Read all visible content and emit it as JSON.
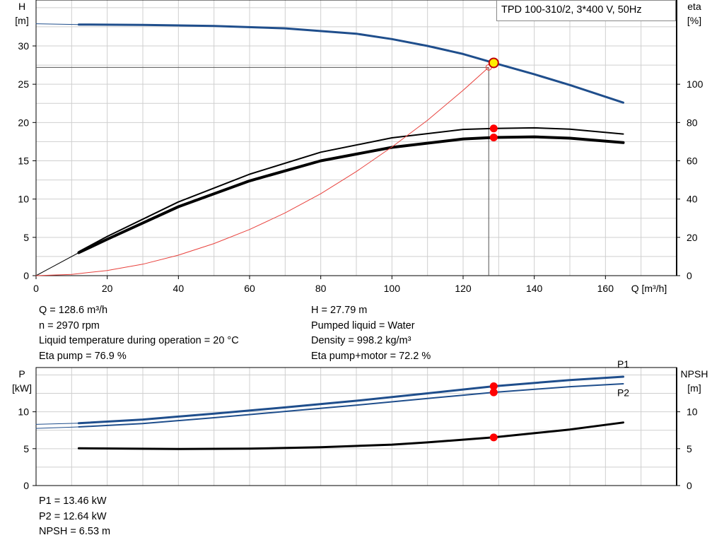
{
  "title_box": "TPD 100-310/2, 3*400 V, 50Hz",
  "colors": {
    "head": "#1f4e8c",
    "eta": "#000000",
    "power": "#1f4e8c",
    "npsh": "#000000",
    "system": "#e8413c",
    "op_point": "#ff0000",
    "op_point_head": "#ffee00"
  },
  "chart_data": [
    {
      "type": "line",
      "name": "upper",
      "xlabel": "Q [m³/h]",
      "ylabel_left": "H [m]",
      "ylabel_right": "eta [%]",
      "xlim": [
        0,
        180
      ],
      "ylim_left": [
        0,
        36
      ],
      "ylim_right": [
        0,
        144
      ],
      "xticks": [
        0,
        20,
        40,
        60,
        80,
        100,
        120,
        140,
        160
      ],
      "yticks_left": [
        0,
        5,
        10,
        15,
        20,
        25,
        30
      ],
      "yticks_right": [
        0,
        20,
        40,
        60,
        80,
        100
      ],
      "grid": true,
      "series": [
        {
          "name": "H",
          "axis": "left",
          "width": 3,
          "color": "#1f4e8c",
          "x": [
            12,
            30,
            50,
            70,
            90,
            100,
            110,
            120,
            128.6,
            140,
            150,
            165
          ],
          "y": [
            32.8,
            32.75,
            32.6,
            32.3,
            31.6,
            30.9,
            30.0,
            28.95,
            27.79,
            26.3,
            24.9,
            22.6
          ]
        },
        {
          "name": "H-ext",
          "axis": "left",
          "width": 1,
          "color": "#1f4e8c",
          "x": [
            0,
            12
          ],
          "y": [
            32.9,
            32.8
          ]
        },
        {
          "name": "Eta pump",
          "axis": "right",
          "width": 2,
          "color": "#000000",
          "x": [
            12,
            20,
            40,
            60,
            80,
            100,
            120,
            128.6,
            140,
            150,
            165
          ],
          "y": [
            12.5,
            20.5,
            38.5,
            53.0,
            64.5,
            72.0,
            76.4,
            76.9,
            77.2,
            76.5,
            74.0
          ]
        },
        {
          "name": "Eta pump+motor",
          "axis": "right",
          "width": 4,
          "color": "#000000",
          "x": [
            12,
            20,
            40,
            60,
            80,
            100,
            120,
            128.6,
            140,
            150,
            165
          ],
          "y": [
            12.0,
            19.0,
            36.0,
            49.5,
            60.0,
            67.0,
            71.4,
            72.2,
            72.5,
            71.8,
            69.5
          ]
        },
        {
          "name": "eta-ext",
          "axis": "right",
          "width": 1,
          "color": "#000000",
          "x": [
            0,
            12
          ],
          "y": [
            0,
            12.0
          ]
        },
        {
          "name": "System curve",
          "axis": "left",
          "width": 1,
          "color": "#e8413c",
          "x": [
            0,
            10,
            20,
            30,
            40,
            50,
            60,
            70,
            80,
            90,
            100,
            110,
            120,
            127.2
          ],
          "y": [
            0,
            0.17,
            0.67,
            1.5,
            2.68,
            4.19,
            6.03,
            8.2,
            10.7,
            13.6,
            16.8,
            20.3,
            24.2,
            27.2
          ]
        }
      ],
      "op_points": [
        {
          "axis": "left",
          "x": 128.6,
          "y": 27.79,
          "style": "head"
        },
        {
          "axis": "right",
          "x": 128.6,
          "y": 76.9,
          "style": "dot"
        },
        {
          "axis": "right",
          "x": 128.6,
          "y": 72.2,
          "style": "dot"
        }
      ],
      "operating_lines": {
        "x": 127.2,
        "y": 27.2
      }
    },
    {
      "type": "line",
      "name": "lower",
      "ylabel_left": "P [kW]",
      "ylabel_right": "NPSH [m]",
      "xlim": [
        0,
        180
      ],
      "ylim_left": [
        0,
        16
      ],
      "ylim_right": [
        0,
        16
      ],
      "yticks_left": [
        0,
        5,
        10
      ],
      "yticks_right": [
        0,
        5,
        10
      ],
      "grid": true,
      "series": [
        {
          "name": "P1",
          "axis": "left",
          "width": 3,
          "color": "#1f4e8c",
          "x": [
            12,
            30,
            50,
            70,
            90,
            110,
            128.6,
            150,
            165
          ],
          "y": [
            8.45,
            8.95,
            9.75,
            10.6,
            11.5,
            12.5,
            13.46,
            14.3,
            14.75
          ]
        },
        {
          "name": "P2",
          "axis": "left",
          "width": 2,
          "color": "#1f4e8c",
          "x": [
            12,
            30,
            50,
            70,
            90,
            110,
            128.6,
            150,
            165
          ],
          "y": [
            7.95,
            8.4,
            9.2,
            10.05,
            10.9,
            11.8,
            12.64,
            13.4,
            13.8
          ]
        },
        {
          "name": "P1-ext",
          "axis": "left",
          "width": 1,
          "color": "#1f4e8c",
          "x": [
            0,
            12
          ],
          "y": [
            8.3,
            8.45
          ]
        },
        {
          "name": "P2-ext",
          "axis": "left",
          "width": 1,
          "color": "#1f4e8c",
          "x": [
            0,
            12
          ],
          "y": [
            7.75,
            7.95
          ]
        },
        {
          "name": "NPSH",
          "axis": "right",
          "width": 3,
          "color": "#000000",
          "x": [
            12,
            40,
            60,
            80,
            100,
            110,
            128.6,
            140,
            150,
            165
          ],
          "y": [
            5.05,
            4.95,
            5.0,
            5.2,
            5.55,
            5.85,
            6.53,
            7.1,
            7.6,
            8.55
          ]
        }
      ],
      "series_labels": [
        {
          "text": "P1",
          "x": 165,
          "y": 16.5
        },
        {
          "text": "P2",
          "x": 165,
          "y": 12.6
        }
      ],
      "op_points": [
        {
          "axis": "left",
          "x": 128.6,
          "y": 13.46,
          "style": "dot"
        },
        {
          "axis": "left",
          "x": 128.6,
          "y": 12.64,
          "style": "dot"
        },
        {
          "axis": "right",
          "x": 128.6,
          "y": 6.53,
          "style": "dot"
        }
      ]
    }
  ],
  "info_left": [
    "Q = 128.6 m³/h",
    "n = 2970 rpm",
    "Liquid temperature during operation = 20 °C",
    "Eta pump = 76.9 %"
  ],
  "info_right": [
    "H = 27.79 m",
    "Pumped liquid = Water",
    "Density = 998.2 kg/m³",
    "Eta pump+motor = 72.2 %"
  ],
  "info_bottom": [
    "P1 = 13.46 kW",
    "P2 = 12.64 kW",
    "NPSH = 6.53 m"
  ]
}
